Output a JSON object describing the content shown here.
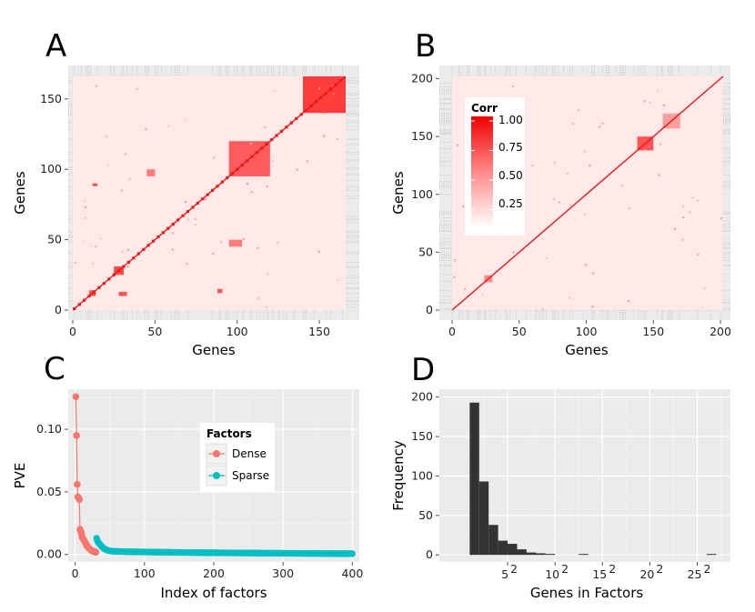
{
  "panels": {
    "a": "A",
    "b": "B",
    "c": "C",
    "d": "D"
  },
  "colors": {
    "panel_bg": "#ebebeb",
    "heat_line": "#e81818",
    "heat_block": "#ff5a5a",
    "heat_light": "#ffdede",
    "dense": "#f8766d",
    "sparse": "#00bfc4",
    "bar": "#333333"
  },
  "chart_data": [
    {
      "id": "A",
      "type": "heatmap",
      "xlabel": "Genes",
      "ylabel": "Genes",
      "n_genes": 166,
      "xlim": [
        0,
        166
      ],
      "ylim": [
        0,
        166
      ],
      "x_ticks": [
        0,
        50,
        100,
        150
      ],
      "y_ticks": [
        0,
        50,
        100,
        150
      ],
      "diagonal": 1.0,
      "blocks": [
        {
          "range": [
            140,
            166
          ],
          "corr": 0.9
        },
        {
          "range": [
            95,
            120
          ],
          "corr": 0.75
        },
        {
          "range": [
            25,
            31
          ],
          "corr": 0.85
        },
        {
          "range": [
            10,
            14
          ],
          "corr": 0.85
        }
      ],
      "offdiag_spots": [
        {
          "x": [
            45,
            50
          ],
          "y": [
            95,
            100
          ],
          "corr": 0.6
        },
        {
          "x": [
            95,
            103
          ],
          "y": [
            45,
            50
          ],
          "corr": 0.6
        },
        {
          "x": [
            28,
            33
          ],
          "y": [
            10,
            13
          ],
          "corr": 0.8
        },
        {
          "x": [
            12,
            15
          ],
          "y": [
            88,
            90
          ],
          "corr": 0.8
        },
        {
          "x": [
            88,
            91
          ],
          "y": [
            12,
            15
          ],
          "corr": 0.8
        }
      ]
    },
    {
      "id": "B",
      "type": "heatmap",
      "xlabel": "Genes",
      "ylabel": "Genes",
      "n_genes": 202,
      "xlim": [
        0,
        202
      ],
      "ylim": [
        0,
        202
      ],
      "x_ticks": [
        0,
        50,
        100,
        150,
        200
      ],
      "y_ticks": [
        0,
        50,
        100,
        150,
        200
      ],
      "diagonal": 1.0,
      "blocks": [
        {
          "range": [
            138,
            150
          ],
          "corr": 0.8
        },
        {
          "range": [
            157,
            170
          ],
          "corr": 0.45
        },
        {
          "range": [
            24,
            30
          ],
          "corr": 0.55
        }
      ],
      "legend": {
        "title": "Corr",
        "placement": "top-left",
        "breaks": [
          "1.00",
          "0.75",
          "0.50",
          "0.25"
        ],
        "values": [
          1.0,
          0.75,
          0.5,
          0.25
        ]
      }
    },
    {
      "id": "C",
      "type": "scatter",
      "xlabel": "Index of factors",
      "ylabel": "PVE",
      "xlim": [
        -10,
        410
      ],
      "ylim": [
        -0.006,
        0.132
      ],
      "x_ticks": [
        0,
        100,
        200,
        300,
        400
      ],
      "y_ticks": [
        0.0,
        0.05,
        0.1
      ],
      "y_tick_labels": [
        "0.00",
        "0.05",
        "0.10"
      ],
      "legend": {
        "title": "Factors",
        "placement": "top-right"
      },
      "series": [
        {
          "name": "Dense",
          "x": [
            1,
            2,
            3,
            4,
            5,
            6,
            7,
            8,
            9,
            10,
            11,
            12,
            13,
            14,
            15,
            16,
            17,
            18,
            19,
            20,
            21,
            22,
            23,
            24,
            25,
            26,
            27,
            28,
            29,
            30
          ],
          "y": [
            0.126,
            0.095,
            0.056,
            0.046,
            0.045,
            0.044,
            0.02,
            0.019,
            0.017,
            0.014,
            0.013,
            0.012,
            0.011,
            0.01,
            0.009,
            0.008,
            0.007,
            0.006,
            0.0055,
            0.005,
            0.0045,
            0.004,
            0.0035,
            0.003,
            0.0028,
            0.0026,
            0.0024,
            0.0022,
            0.002,
            0.0018
          ]
        },
        {
          "name": "Sparse",
          "x_start": 31,
          "x_end": 400,
          "y_first": [
            0.013,
            0.011,
            0.01,
            0.009,
            0.0085,
            0.008,
            0.0072,
            0.0065,
            0.006,
            0.0055,
            0.005,
            0.0045,
            0.0042,
            0.004,
            0.0037,
            0.0035,
            0.0033,
            0.0031,
            0.003,
            0.0029
          ],
          "y_tail_start": 0.0028,
          "y_tail_end": 0.0006
        }
      ]
    },
    {
      "id": "D",
      "type": "bar",
      "xlabel": "Genes in Factors",
      "ylabel": "Frequency",
      "x_scale": "sqrt",
      "xlim_sqrt": [
        -2.2,
        28.5
      ],
      "ylim": [
        -9,
        210
      ],
      "y_ticks": [
        0,
        50,
        100,
        150,
        200
      ],
      "x_ticks": [
        {
          "base": "5",
          "exp": "2",
          "at": 5
        },
        {
          "base": "10",
          "exp": "2",
          "at": 10
        },
        {
          "base": "15",
          "exp": "2",
          "at": 15
        },
        {
          "base": "20",
          "exp": "2",
          "at": 20
        },
        {
          "base": "25",
          "exp": "2",
          "at": 25
        }
      ],
      "bins_sqrt": [
        [
          1,
          2
        ],
        [
          2,
          3
        ],
        [
          3,
          4
        ],
        [
          4,
          5
        ],
        [
          5,
          6
        ],
        [
          6,
          7
        ],
        [
          7,
          8
        ],
        [
          8,
          9
        ],
        [
          9,
          10
        ],
        [
          12.5,
          13.5
        ],
        [
          26,
          27
        ]
      ],
      "values": [
        193,
        93,
        38,
        18,
        14,
        7,
        3,
        2,
        1,
        1,
        1
      ]
    }
  ]
}
